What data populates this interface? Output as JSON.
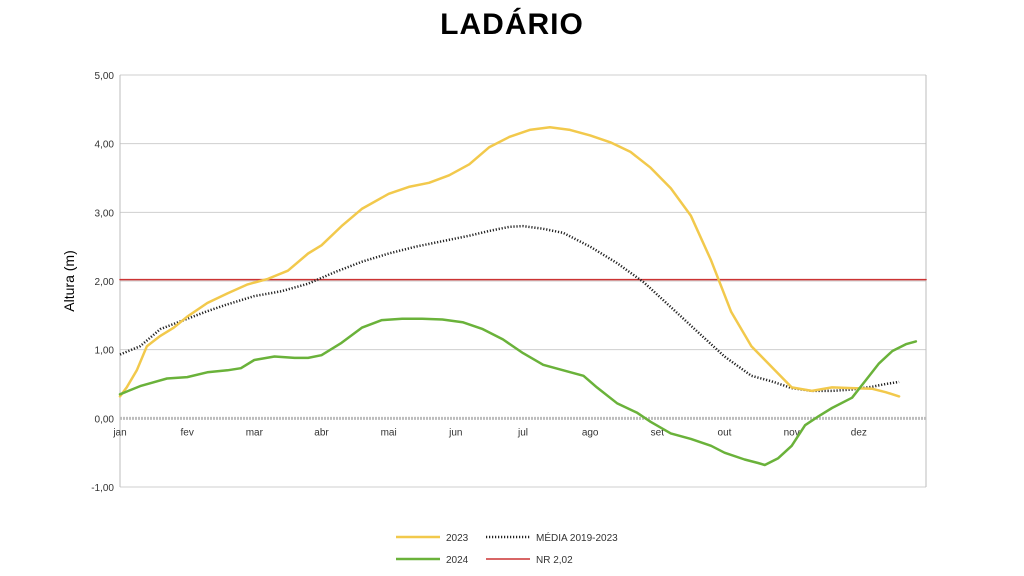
{
  "chart_data": {
    "type": "line",
    "title": "LADÁRIO",
    "ylabel": "Altura (m)",
    "xlabel": "",
    "ylim": [
      -1.0,
      5.0
    ],
    "y_ticks": [
      "-1,00",
      "0,00",
      "1,00",
      "2,00",
      "3,00",
      "4,00",
      "5,00"
    ],
    "y_tick_values": [
      -1,
      0,
      1,
      2,
      3,
      4,
      5
    ],
    "categories": [
      "jan",
      "fev",
      "mar",
      "abr",
      "mai",
      "jun",
      "jul",
      "ago",
      "set",
      "out",
      "nov",
      "dez"
    ],
    "grid": true,
    "legend_position": "bottom",
    "series": [
      {
        "name": "2023",
        "color": "#f2c94c",
        "style": "solid",
        "points": [
          [
            0,
            0.32
          ],
          [
            0.1,
            0.45
          ],
          [
            0.25,
            0.7
          ],
          [
            0.4,
            1.05
          ],
          [
            0.6,
            1.2
          ],
          [
            0.8,
            1.32
          ],
          [
            1.0,
            1.48
          ],
          [
            1.3,
            1.68
          ],
          [
            1.6,
            1.82
          ],
          [
            1.9,
            1.95
          ],
          [
            2.2,
            2.03
          ],
          [
            2.5,
            2.15
          ],
          [
            2.8,
            2.4
          ],
          [
            3.0,
            2.52
          ],
          [
            3.3,
            2.8
          ],
          [
            3.6,
            3.05
          ],
          [
            4.0,
            3.27
          ],
          [
            4.3,
            3.37
          ],
          [
            4.6,
            3.43
          ],
          [
            4.9,
            3.54
          ],
          [
            5.2,
            3.7
          ],
          [
            5.5,
            3.95
          ],
          [
            5.8,
            4.1
          ],
          [
            6.1,
            4.2
          ],
          [
            6.4,
            4.24
          ],
          [
            6.7,
            4.2
          ],
          [
            7.0,
            4.12
          ],
          [
            7.3,
            4.02
          ],
          [
            7.6,
            3.88
          ],
          [
            7.9,
            3.65
          ],
          [
            8.2,
            3.35
          ],
          [
            8.5,
            2.95
          ],
          [
            8.8,
            2.3
          ],
          [
            9.1,
            1.55
          ],
          [
            9.4,
            1.05
          ],
          [
            9.7,
            0.75
          ],
          [
            10.0,
            0.45
          ],
          [
            10.3,
            0.4
          ],
          [
            10.6,
            0.45
          ],
          [
            10.9,
            0.44
          ],
          [
            11.2,
            0.43
          ],
          [
            11.4,
            0.38
          ],
          [
            11.6,
            0.32
          ]
        ]
      },
      {
        "name": "MÉDIA 2019-2023",
        "color": "#222222",
        "style": "dotted",
        "points": [
          [
            0,
            0.93
          ],
          [
            0.3,
            1.05
          ],
          [
            0.6,
            1.3
          ],
          [
            1.0,
            1.45
          ],
          [
            1.3,
            1.56
          ],
          [
            1.6,
            1.66
          ],
          [
            2.0,
            1.78
          ],
          [
            2.4,
            1.85
          ],
          [
            2.8,
            1.96
          ],
          [
            3.2,
            2.13
          ],
          [
            3.6,
            2.28
          ],
          [
            4.0,
            2.4
          ],
          [
            4.4,
            2.5
          ],
          [
            4.8,
            2.58
          ],
          [
            5.2,
            2.66
          ],
          [
            5.5,
            2.73
          ],
          [
            5.8,
            2.79
          ],
          [
            6.0,
            2.8
          ],
          [
            6.3,
            2.76
          ],
          [
            6.6,
            2.7
          ],
          [
            7.0,
            2.5
          ],
          [
            7.4,
            2.26
          ],
          [
            7.8,
            1.98
          ],
          [
            8.2,
            1.62
          ],
          [
            8.6,
            1.26
          ],
          [
            9.0,
            0.9
          ],
          [
            9.4,
            0.62
          ],
          [
            9.7,
            0.54
          ],
          [
            10.0,
            0.44
          ],
          [
            10.3,
            0.4
          ],
          [
            10.6,
            0.4
          ],
          [
            10.9,
            0.42
          ],
          [
            11.2,
            0.46
          ],
          [
            11.4,
            0.5
          ],
          [
            11.6,
            0.53
          ]
        ]
      },
      {
        "name": "2024",
        "color": "#6ab23a",
        "style": "solid",
        "points": [
          [
            0,
            0.35
          ],
          [
            0.3,
            0.47
          ],
          [
            0.7,
            0.58
          ],
          [
            1.0,
            0.6
          ],
          [
            1.3,
            0.67
          ],
          [
            1.6,
            0.7
          ],
          [
            1.8,
            0.73
          ],
          [
            2.0,
            0.85
          ],
          [
            2.3,
            0.9
          ],
          [
            2.6,
            0.88
          ],
          [
            2.8,
            0.88
          ],
          [
            3.0,
            0.92
          ],
          [
            3.3,
            1.1
          ],
          [
            3.6,
            1.32
          ],
          [
            3.9,
            1.43
          ],
          [
            4.2,
            1.45
          ],
          [
            4.5,
            1.45
          ],
          [
            4.8,
            1.44
          ],
          [
            5.1,
            1.4
          ],
          [
            5.4,
            1.3
          ],
          [
            5.7,
            1.15
          ],
          [
            6.0,
            0.95
          ],
          [
            6.3,
            0.78
          ],
          [
            6.6,
            0.7
          ],
          [
            6.9,
            0.62
          ],
          [
            7.1,
            0.45
          ],
          [
            7.4,
            0.22
          ],
          [
            7.7,
            0.08
          ],
          [
            7.9,
            -0.05
          ],
          [
            8.2,
            -0.22
          ],
          [
            8.5,
            -0.3
          ],
          [
            8.8,
            -0.4
          ],
          [
            9.0,
            -0.5
          ],
          [
            9.3,
            -0.6
          ],
          [
            9.5,
            -0.65
          ],
          [
            9.6,
            -0.68
          ],
          [
            9.8,
            -0.58
          ],
          [
            10.0,
            -0.4
          ],
          [
            10.2,
            -0.1
          ],
          [
            10.4,
            0.03
          ],
          [
            10.6,
            0.15
          ],
          [
            10.9,
            0.3
          ],
          [
            11.1,
            0.55
          ],
          [
            11.3,
            0.8
          ],
          [
            11.5,
            0.98
          ],
          [
            11.7,
            1.08
          ],
          [
            11.85,
            1.12
          ]
        ]
      },
      {
        "name": "NR 2,02",
        "color": "#cc3333",
        "style": "solid",
        "points": [
          [
            0,
            2.02
          ],
          [
            12,
            2.02
          ]
        ]
      }
    ]
  }
}
